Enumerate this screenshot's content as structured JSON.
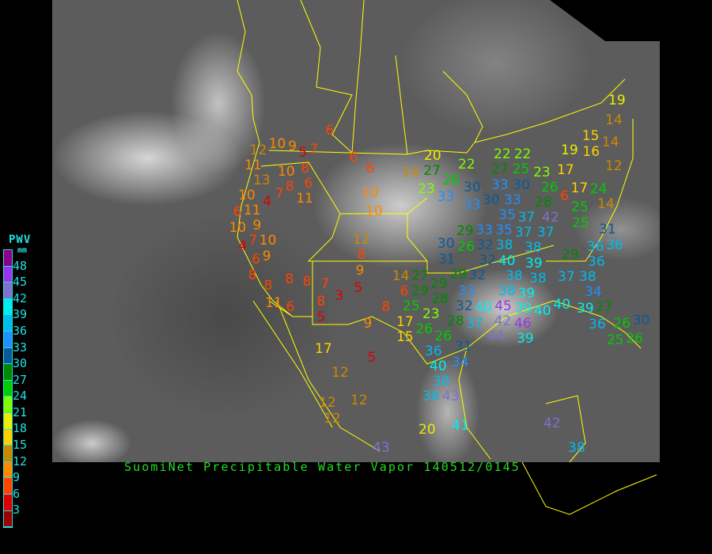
{
  "title": "SuomiNet Precipitable Water Vapor 140512/0145",
  "legend": {
    "title": "PWV",
    "unit": "mm",
    "labels": [
      "48",
      "45",
      "42",
      "39",
      "36",
      "33",
      "30",
      "27",
      "24",
      "21",
      "18",
      "15",
      "12",
      "9",
      "6",
      "3"
    ],
    "colors": [
      "#8b008b",
      "#9933ee",
      "#8070d0",
      "#00eeee",
      "#00bbee",
      "#1e90ff",
      "#0a5a9a",
      "#008800",
      "#00cc00",
      "#80ff00",
      "#eeee00",
      "#ffd000",
      "#cc8800",
      "#ff8800",
      "#ff4400",
      "#dd0000",
      "#990000"
    ]
  },
  "border_color": "#ffff00",
  "stations": [
    6,
    10,
    9,
    12,
    7,
    5,
    8,
    6,
    6,
    11,
    13,
    10,
    8,
    7,
    6,
    11,
    10,
    10,
    10,
    4,
    6,
    11,
    10,
    9,
    7,
    4,
    10,
    9,
    12,
    8,
    9,
    6,
    8,
    8,
    8,
    8,
    7,
    3,
    5,
    8,
    11,
    6,
    5,
    8,
    9,
    17,
    5,
    12,
    31,
    29,
    32,
    32,
    40,
    39,
    38,
    38,
    14,
    27,
    6,
    29,
    29,
    28,
    25,
    33,
    39,
    40,
    23,
    32,
    40,
    45,
    37,
    42,
    46,
    17,
    26,
    28,
    26,
    44,
    39,
    15,
    36,
    31,
    20,
    14,
    27,
    26,
    22,
    22,
    22,
    27,
    25,
    23,
    23,
    30,
    33,
    33,
    30,
    33,
    30,
    33,
    28,
    35,
    37,
    29,
    26,
    30,
    33,
    35,
    37,
    32,
    38,
    38,
    37,
    19,
    14,
    15,
    14,
    19,
    16,
    17,
    12,
    17,
    24,
    14,
    26,
    6,
    25,
    42,
    25,
    31,
    36,
    29,
    36,
    36,
    38,
    37,
    38,
    39,
    34,
    27,
    40,
    39,
    36,
    26,
    30,
    25,
    26,
    12,
    12,
    12,
    40,
    34,
    38,
    43,
    36,
    20,
    41,
    43,
    42,
    38
  ]
}
